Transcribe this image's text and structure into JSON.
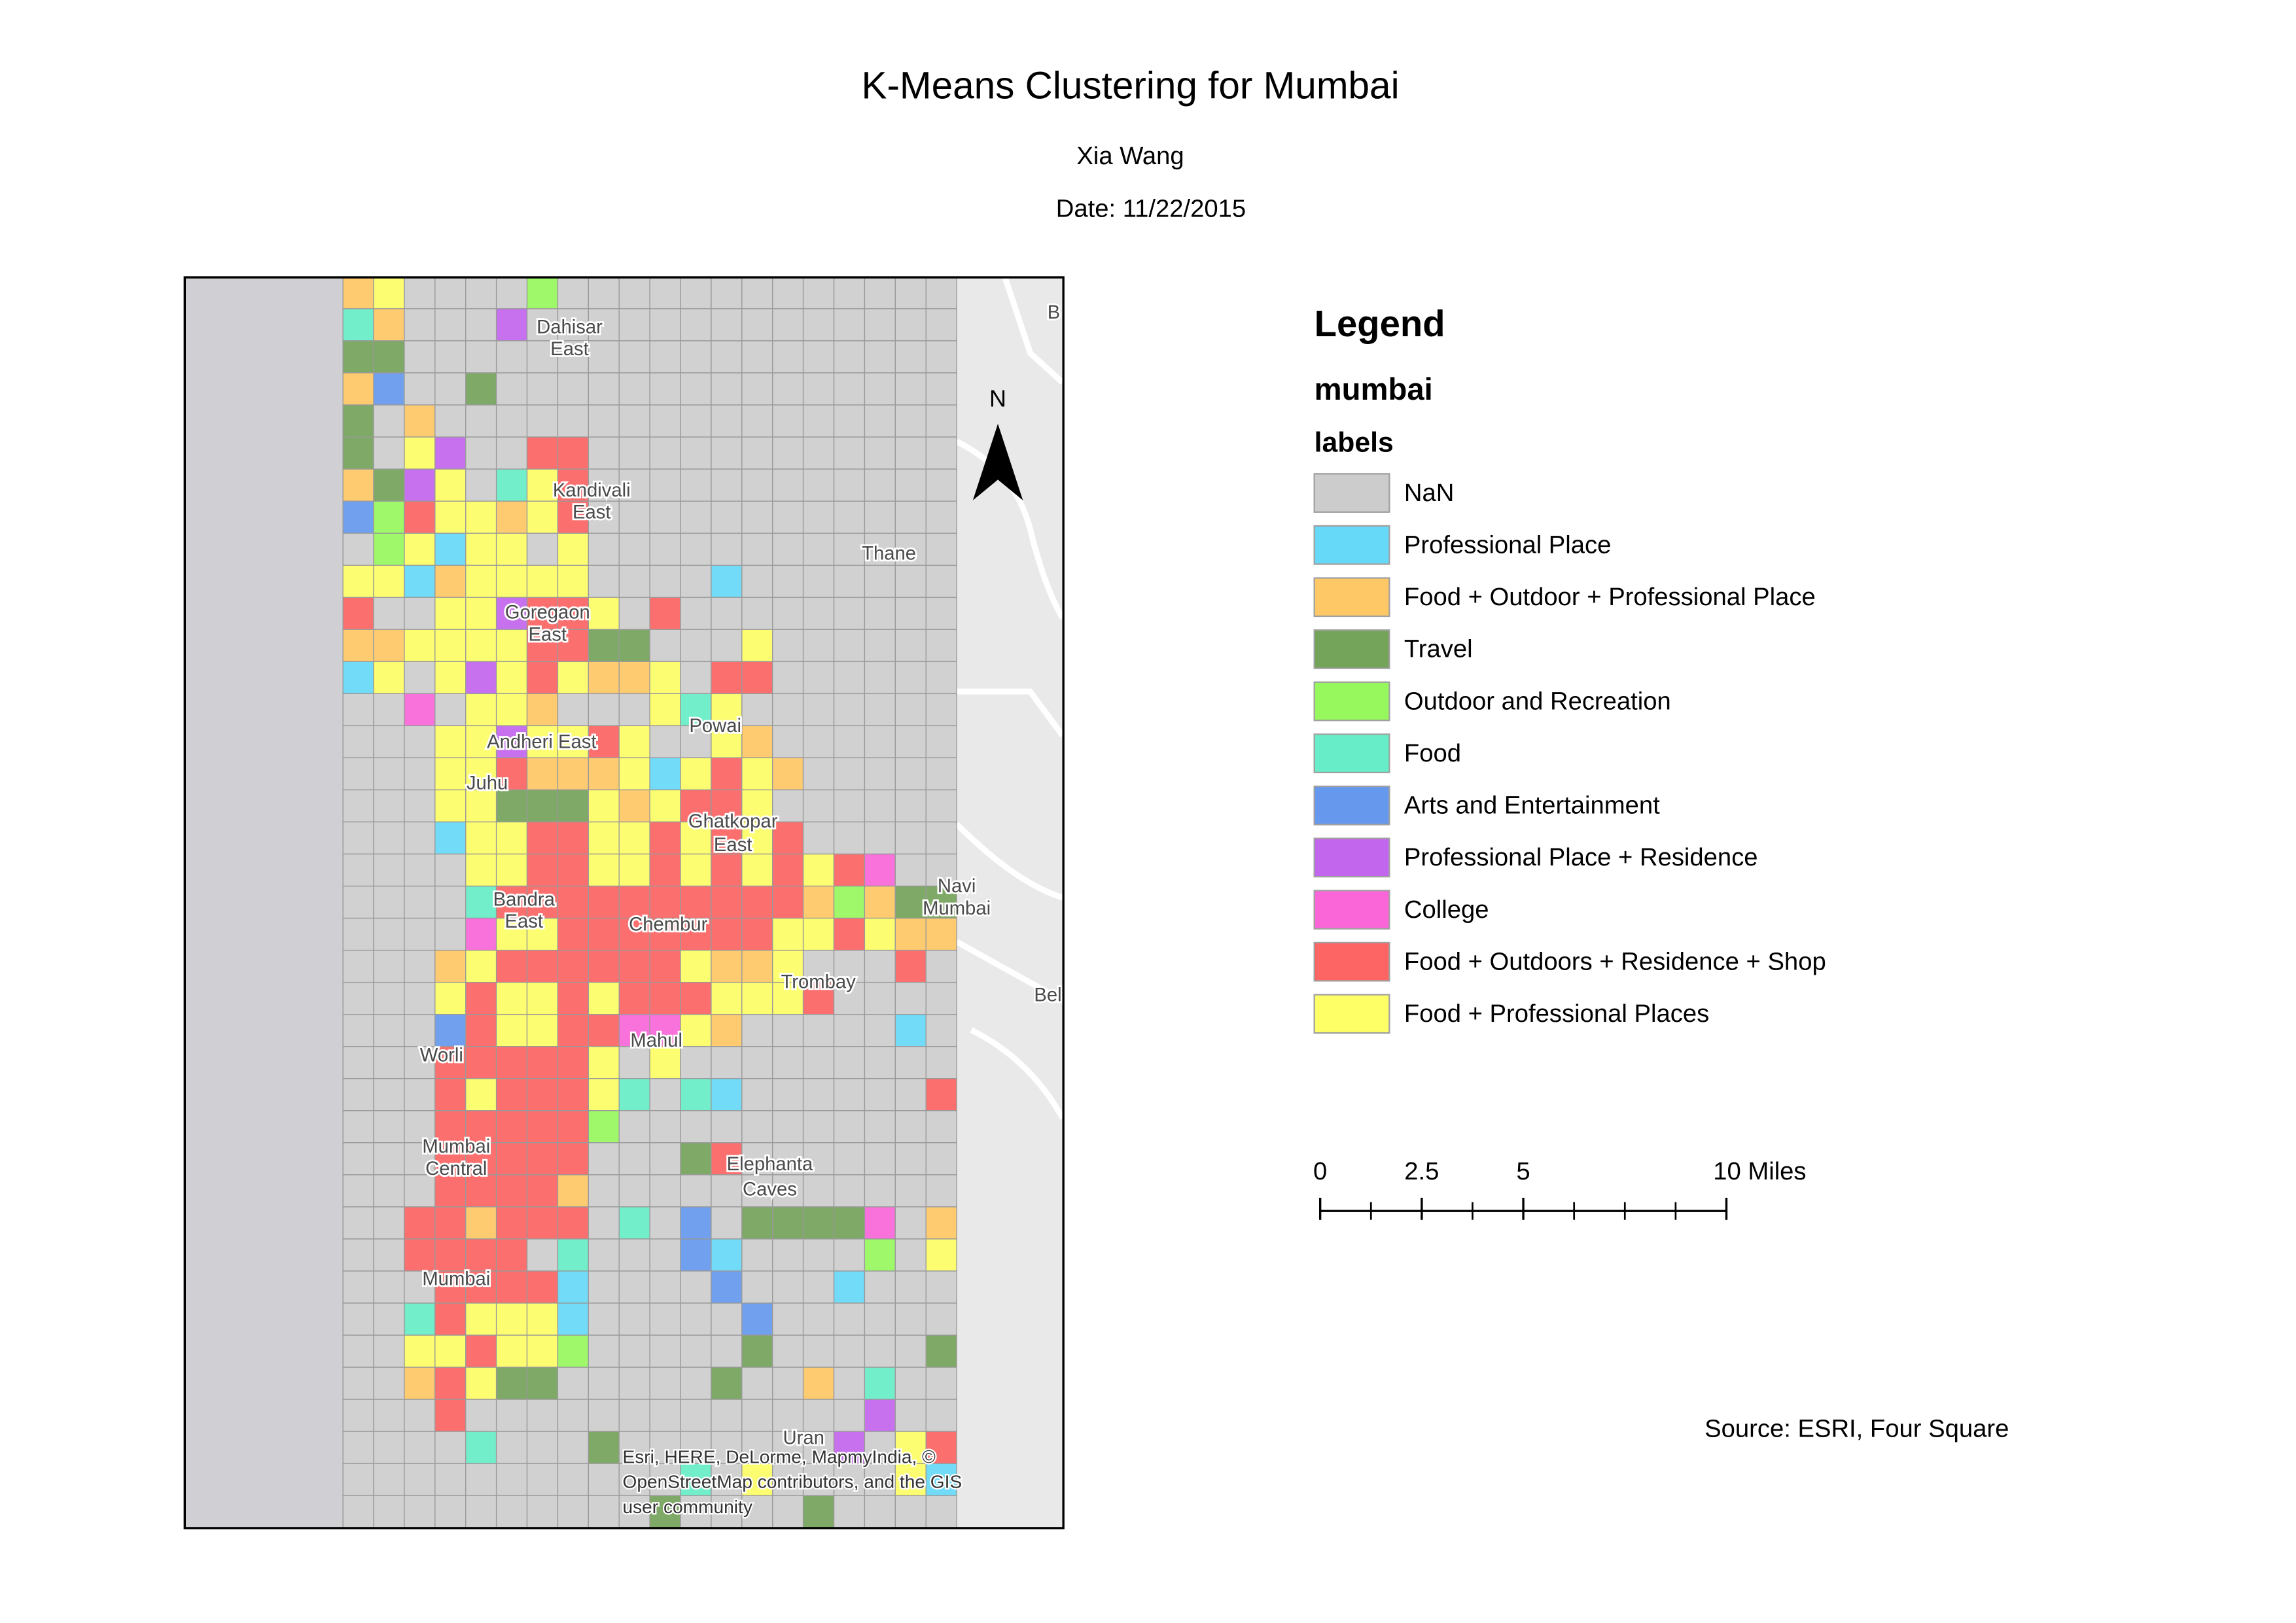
{
  "header": {
    "title": "K-Means Clustering for Mumbai",
    "author": "Xia Wang",
    "date": "Date: 11/22/2015"
  },
  "legend": {
    "title": "Legend",
    "layer": "mumbai",
    "field": "labels",
    "items": [
      {
        "label": "NaN",
        "color": "#cccccc"
      },
      {
        "label": "Professional Place",
        "color": "#66d9f8"
      },
      {
        "label": "Food + Outdoor + Professional Place",
        "color": "#ffc866"
      },
      {
        "label": "Travel",
        "color": "#74a35a"
      },
      {
        "label": "Outdoor and Recreation",
        "color": "#97f85e"
      },
      {
        "label": "Food",
        "color": "#67eec8"
      },
      {
        "label": "Arts and Entertainment",
        "color": "#6699ee"
      },
      {
        "label": "Professional Place + Residence",
        "color": "#c366ee"
      },
      {
        "label": "College",
        "color": "#fa66d8"
      },
      {
        "label": "Food + Outdoors + Residence + Shop",
        "color": "#fd6464"
      },
      {
        "label": "Food + Professional Places",
        "color": "#fefe66"
      }
    ]
  },
  "scale_bar": {
    "ticks": [
      0,
      2.5,
      5,
      {
        "value": 10,
        "label": "10 Miles"
      }
    ]
  },
  "north_arrow": "N",
  "source": "Source: ESRI, Four Square",
  "map": {
    "attribution": [
      "Esri, HERE, DeLorme, MapmyIndia, ©",
      "OpenStreetMap contributors, and the GIS",
      "user community"
    ],
    "places": [
      "Dahisar",
      "East",
      "Kandivali",
      "East",
      "Thane",
      "Goregaon",
      "East",
      "Powai",
      "Andheri East",
      "Juhu",
      "Ghatkopar",
      "East",
      "Navi",
      "Mumbai",
      "Bandra",
      "East",
      "Chembur",
      "Trombay",
      "Mahul",
      "Worli",
      "Mumbai",
      "Central",
      "Elephanta",
      "Caves",
      "Mumbai",
      "Uran",
      "B",
      "Bel"
    ]
  }
}
